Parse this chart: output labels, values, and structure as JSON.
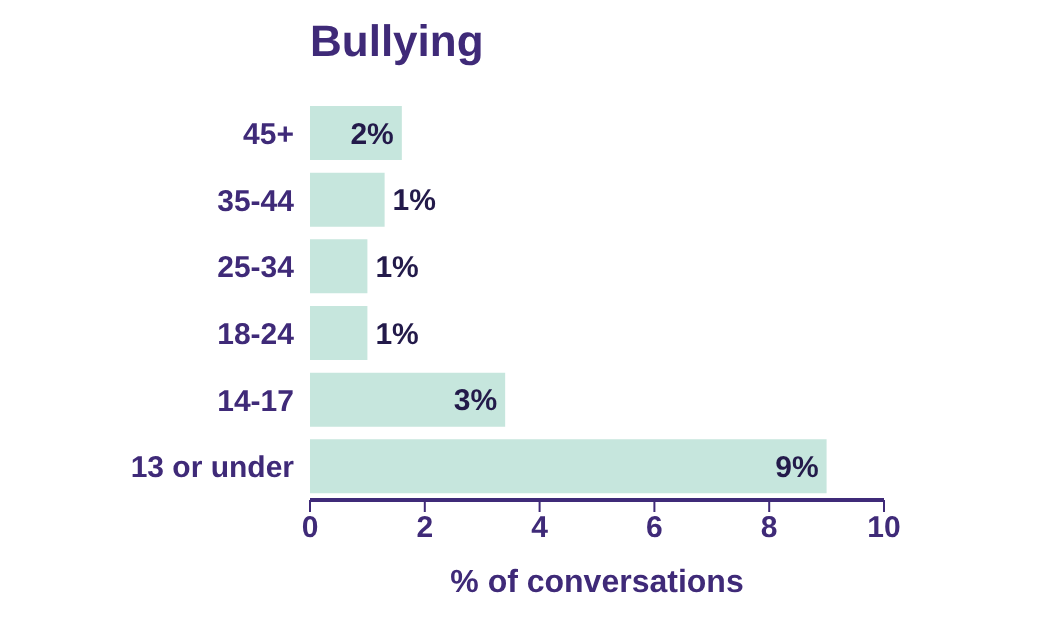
{
  "chart_data": {
    "type": "bar",
    "orientation": "horizontal",
    "title": "Bullying",
    "xlabel": "% of conversations",
    "categories": [
      "45+",
      "35-44",
      "25-34",
      "18-24",
      "14-17",
      "13 or under"
    ],
    "values": [
      1.6,
      1.3,
      1.0,
      1.0,
      3.4,
      9.0
    ],
    "value_labels": [
      "2%",
      "1%",
      "1%",
      "1%",
      "3%",
      "9%"
    ],
    "color": "#c6e6dd",
    "xlim": [
      0,
      10
    ],
    "xticks": [
      0,
      2,
      4,
      6,
      8,
      10
    ],
    "grid": false,
    "legend": false
  }
}
